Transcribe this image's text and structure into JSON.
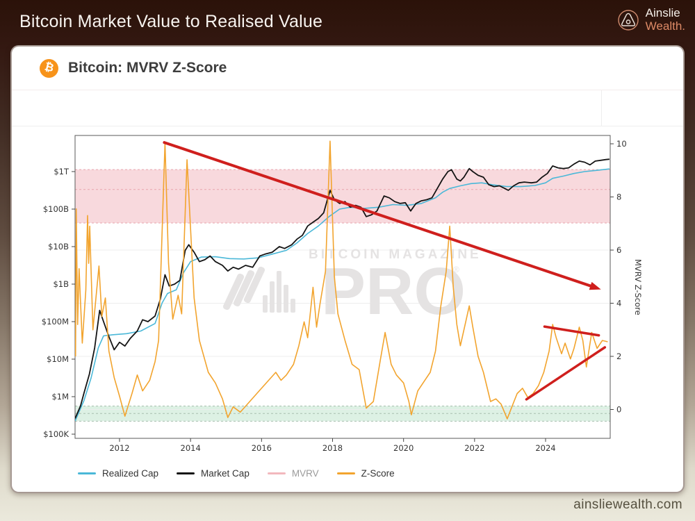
{
  "topbar": {
    "title": "Bitcoin Market Value to Realised Value",
    "brand_name": "Ainslie",
    "brand_suffix": "Wealth."
  },
  "card": {
    "title": "Bitcoin: MVRV Z-Score",
    "bitcoin_symbol": "₿"
  },
  "watermark": {
    "line1": "BITCOIN MAGAZINE",
    "line2": "PRO",
    "reg": "®",
    "color": "#e5e3e3"
  },
  "footer": {
    "website": "ainsliewealth.com"
  },
  "chart_data": {
    "type": "line",
    "title": "Bitcoin: MVRV Z-Score",
    "x_axis": {
      "range": [
        2010.75,
        2025.82
      ],
      "ticks": [
        2012,
        2014,
        2016,
        2018,
        2020,
        2022,
        2024
      ]
    },
    "left_axis": {
      "scale": "log",
      "unit": "USD",
      "tick_labels": [
        "$1T",
        "$100B",
        "$10B",
        "$1B",
        "$100M",
        "$10M",
        "$1M",
        "$100K"
      ],
      "tick_log10_values": [
        12,
        11,
        10,
        9,
        8,
        7,
        6,
        5
      ]
    },
    "right_axis": {
      "label": "MVRV Z-Score",
      "ticks": [
        10,
        8,
        6,
        4,
        2,
        0
      ],
      "range": [
        -1.15,
        10.4
      ]
    },
    "grid_z_values": [
      0,
      2,
      4,
      6
    ],
    "bands": [
      {
        "name": "overvalued-band",
        "axis": "z",
        "from": 7.02,
        "to": 9.03,
        "mid_line": 8.28,
        "fill": "#f8d9dd",
        "line_color": "#e7a3ad"
      },
      {
        "name": "undervalued-band",
        "axis": "z",
        "from": -0.44,
        "to": 0.13,
        "mid_line": -0.15,
        "fill": "#ddf1e4",
        "line_color": "#a8bfae"
      }
    ],
    "series": [
      {
        "name": "Realized Cap",
        "axis": "left",
        "color": "#4ab8d8",
        "width": 1.6,
        "value_format": "log10_usd",
        "points": [
          [
            2010.75,
            5.35
          ],
          [
            2011.0,
            5.9
          ],
          [
            2011.2,
            6.5
          ],
          [
            2011.4,
            7.3
          ],
          [
            2011.55,
            7.62
          ],
          [
            2011.8,
            7.65
          ],
          [
            2012.2,
            7.68
          ],
          [
            2012.6,
            7.75
          ],
          [
            2013.0,
            7.95
          ],
          [
            2013.2,
            8.5
          ],
          [
            2013.35,
            8.75
          ],
          [
            2013.6,
            8.85
          ],
          [
            2013.8,
            9.3
          ],
          [
            2014.0,
            9.6
          ],
          [
            2014.3,
            9.72
          ],
          [
            2014.7,
            9.73
          ],
          [
            2015.1,
            9.68
          ],
          [
            2015.5,
            9.67
          ],
          [
            2015.9,
            9.7
          ],
          [
            2016.3,
            9.8
          ],
          [
            2016.7,
            9.9
          ],
          [
            2017.0,
            10.1
          ],
          [
            2017.3,
            10.35
          ],
          [
            2017.6,
            10.55
          ],
          [
            2017.9,
            10.8
          ],
          [
            2018.2,
            11.0
          ],
          [
            2018.5,
            11.05
          ],
          [
            2018.9,
            11.02
          ],
          [
            2019.3,
            11.05
          ],
          [
            2019.7,
            11.12
          ],
          [
            2020.1,
            11.1
          ],
          [
            2020.5,
            11.15
          ],
          [
            2020.9,
            11.3
          ],
          [
            2021.1,
            11.45
          ],
          [
            2021.3,
            11.55
          ],
          [
            2021.6,
            11.62
          ],
          [
            2021.9,
            11.68
          ],
          [
            2022.2,
            11.7
          ],
          [
            2022.5,
            11.65
          ],
          [
            2022.9,
            11.6
          ],
          [
            2023.3,
            11.6
          ],
          [
            2023.7,
            11.63
          ],
          [
            2024.0,
            11.7
          ],
          [
            2024.2,
            11.82
          ],
          [
            2024.5,
            11.88
          ],
          [
            2024.8,
            11.95
          ],
          [
            2025.1,
            12.0
          ],
          [
            2025.4,
            12.03
          ],
          [
            2025.8,
            12.07
          ]
        ]
      },
      {
        "name": "Market Cap",
        "axis": "left",
        "color": "#141414",
        "width": 1.8,
        "value_format": "log10_usd",
        "points": [
          [
            2010.75,
            5.42
          ],
          [
            2010.9,
            5.75
          ],
          [
            2011.0,
            6.1
          ],
          [
            2011.15,
            6.6
          ],
          [
            2011.3,
            7.3
          ],
          [
            2011.44,
            8.3
          ],
          [
            2011.55,
            8.0
          ],
          [
            2011.7,
            7.6
          ],
          [
            2011.85,
            7.25
          ],
          [
            2012.0,
            7.45
          ],
          [
            2012.15,
            7.35
          ],
          [
            2012.3,
            7.55
          ],
          [
            2012.5,
            7.75
          ],
          [
            2012.65,
            8.05
          ],
          [
            2012.8,
            8.0
          ],
          [
            2013.0,
            8.15
          ],
          [
            2013.15,
            8.6
          ],
          [
            2013.28,
            9.25
          ],
          [
            2013.4,
            8.95
          ],
          [
            2013.55,
            9.0
          ],
          [
            2013.7,
            9.1
          ],
          [
            2013.85,
            9.9
          ],
          [
            2013.95,
            10.05
          ],
          [
            2014.1,
            9.85
          ],
          [
            2014.25,
            9.6
          ],
          [
            2014.4,
            9.65
          ],
          [
            2014.55,
            9.75
          ],
          [
            2014.7,
            9.6
          ],
          [
            2014.9,
            9.5
          ],
          [
            2015.05,
            9.35
          ],
          [
            2015.2,
            9.45
          ],
          [
            2015.35,
            9.4
          ],
          [
            2015.55,
            9.5
          ],
          [
            2015.75,
            9.45
          ],
          [
            2015.95,
            9.75
          ],
          [
            2016.1,
            9.8
          ],
          [
            2016.3,
            9.85
          ],
          [
            2016.5,
            10.0
          ],
          [
            2016.65,
            9.95
          ],
          [
            2016.85,
            10.05
          ],
          [
            2017.0,
            10.2
          ],
          [
            2017.15,
            10.3
          ],
          [
            2017.3,
            10.55
          ],
          [
            2017.45,
            10.65
          ],
          [
            2017.6,
            10.75
          ],
          [
            2017.75,
            10.9
          ],
          [
            2017.93,
            11.5
          ],
          [
            2018.05,
            11.25
          ],
          [
            2018.2,
            11.15
          ],
          [
            2018.35,
            11.2
          ],
          [
            2018.5,
            11.05
          ],
          [
            2018.65,
            11.1
          ],
          [
            2018.8,
            11.05
          ],
          [
            2018.95,
            10.8
          ],
          [
            2019.1,
            10.85
          ],
          [
            2019.25,
            10.95
          ],
          [
            2019.45,
            11.35
          ],
          [
            2019.6,
            11.3
          ],
          [
            2019.75,
            11.2
          ],
          [
            2019.9,
            11.15
          ],
          [
            2020.05,
            11.17
          ],
          [
            2020.2,
            10.95
          ],
          [
            2020.35,
            11.15
          ],
          [
            2020.5,
            11.22
          ],
          [
            2020.65,
            11.25
          ],
          [
            2020.8,
            11.3
          ],
          [
            2020.95,
            11.55
          ],
          [
            2021.1,
            11.8
          ],
          [
            2021.25,
            12.0
          ],
          [
            2021.35,
            12.05
          ],
          [
            2021.5,
            11.8
          ],
          [
            2021.6,
            11.75
          ],
          [
            2021.7,
            11.85
          ],
          [
            2021.85,
            12.08
          ],
          [
            2021.95,
            12.0
          ],
          [
            2022.1,
            11.9
          ],
          [
            2022.25,
            11.85
          ],
          [
            2022.4,
            11.65
          ],
          [
            2022.55,
            11.6
          ],
          [
            2022.7,
            11.62
          ],
          [
            2022.85,
            11.55
          ],
          [
            2022.95,
            11.5
          ],
          [
            2023.1,
            11.62
          ],
          [
            2023.25,
            11.7
          ],
          [
            2023.4,
            11.72
          ],
          [
            2023.6,
            11.7
          ],
          [
            2023.75,
            11.72
          ],
          [
            2023.9,
            11.85
          ],
          [
            2024.05,
            11.95
          ],
          [
            2024.2,
            12.15
          ],
          [
            2024.35,
            12.1
          ],
          [
            2024.5,
            12.08
          ],
          [
            2024.65,
            12.1
          ],
          [
            2024.8,
            12.2
          ],
          [
            2024.95,
            12.28
          ],
          [
            2025.1,
            12.25
          ],
          [
            2025.25,
            12.18
          ],
          [
            2025.4,
            12.28
          ],
          [
            2025.55,
            12.3
          ],
          [
            2025.7,
            12.32
          ],
          [
            2025.8,
            12.33
          ]
        ]
      },
      {
        "name": "Z-Score",
        "axis": "z",
        "color": "#f2a42e",
        "width": 1.6,
        "value_format": "z_score",
        "points": [
          [
            2010.76,
            2.0
          ],
          [
            2010.78,
            7.55
          ],
          [
            2010.82,
            3.2
          ],
          [
            2010.86,
            5.3
          ],
          [
            2010.95,
            2.5
          ],
          [
            2011.05,
            4.5
          ],
          [
            2011.1,
            7.3
          ],
          [
            2011.13,
            5.5
          ],
          [
            2011.16,
            6.9
          ],
          [
            2011.25,
            3.0
          ],
          [
            2011.42,
            5.4
          ],
          [
            2011.5,
            3.5
          ],
          [
            2011.6,
            4.2
          ],
          [
            2011.7,
            2.2
          ],
          [
            2011.85,
            1.2
          ],
          [
            2012.0,
            0.5
          ],
          [
            2012.15,
            -0.25
          ],
          [
            2012.35,
            0.6
          ],
          [
            2012.5,
            1.3
          ],
          [
            2012.65,
            0.7
          ],
          [
            2012.85,
            1.1
          ],
          [
            2013.0,
            1.8
          ],
          [
            2013.1,
            2.6
          ],
          [
            2013.28,
            10.05
          ],
          [
            2013.38,
            5.5
          ],
          [
            2013.5,
            3.4
          ],
          [
            2013.65,
            4.3
          ],
          [
            2013.75,
            3.6
          ],
          [
            2013.9,
            9.4
          ],
          [
            2014.1,
            4.2
          ],
          [
            2014.25,
            2.6
          ],
          [
            2014.5,
            1.4
          ],
          [
            2014.7,
            1.0
          ],
          [
            2014.9,
            0.4
          ],
          [
            2015.05,
            -0.3
          ],
          [
            2015.2,
            0.1
          ],
          [
            2015.4,
            -0.1
          ],
          [
            2015.6,
            0.2
          ],
          [
            2015.8,
            0.5
          ],
          [
            2016.0,
            0.8
          ],
          [
            2016.2,
            1.1
          ],
          [
            2016.4,
            1.4
          ],
          [
            2016.55,
            1.1
          ],
          [
            2016.7,
            1.3
          ],
          [
            2016.9,
            1.7
          ],
          [
            2017.05,
            2.4
          ],
          [
            2017.2,
            3.3
          ],
          [
            2017.3,
            2.7
          ],
          [
            2017.45,
            4.6
          ],
          [
            2017.55,
            3.1
          ],
          [
            2017.65,
            4.0
          ],
          [
            2017.8,
            5.2
          ],
          [
            2017.93,
            10.1
          ],
          [
            2018.05,
            5.0
          ],
          [
            2018.15,
            3.6
          ],
          [
            2018.35,
            2.6
          ],
          [
            2018.55,
            1.7
          ],
          [
            2018.75,
            1.5
          ],
          [
            2018.95,
            0.05
          ],
          [
            2019.15,
            0.3
          ],
          [
            2019.35,
            1.9
          ],
          [
            2019.48,
            2.9
          ],
          [
            2019.65,
            1.7
          ],
          [
            2019.8,
            1.3
          ],
          [
            2020.0,
            1.0
          ],
          [
            2020.15,
            0.3
          ],
          [
            2020.22,
            -0.2
          ],
          [
            2020.4,
            0.7
          ],
          [
            2020.6,
            1.1
          ],
          [
            2020.75,
            1.4
          ],
          [
            2020.9,
            2.2
          ],
          [
            2021.05,
            3.9
          ],
          [
            2021.2,
            5.2
          ],
          [
            2021.3,
            6.9
          ],
          [
            2021.4,
            4.6
          ],
          [
            2021.5,
            3.2
          ],
          [
            2021.6,
            2.4
          ],
          [
            2021.75,
            3.3
          ],
          [
            2021.85,
            3.9
          ],
          [
            2021.95,
            3.1
          ],
          [
            2022.1,
            2.0
          ],
          [
            2022.25,
            1.4
          ],
          [
            2022.45,
            0.3
          ],
          [
            2022.6,
            0.4
          ],
          [
            2022.75,
            0.2
          ],
          [
            2022.92,
            -0.35
          ],
          [
            2023.05,
            0.1
          ],
          [
            2023.2,
            0.6
          ],
          [
            2023.35,
            0.8
          ],
          [
            2023.5,
            0.45
          ],
          [
            2023.65,
            0.6
          ],
          [
            2023.8,
            0.9
          ],
          [
            2023.95,
            1.4
          ],
          [
            2024.1,
            2.2
          ],
          [
            2024.2,
            3.2
          ],
          [
            2024.3,
            2.7
          ],
          [
            2024.45,
            2.1
          ],
          [
            2024.55,
            2.5
          ],
          [
            2024.7,
            1.9
          ],
          [
            2024.8,
            2.3
          ],
          [
            2024.95,
            3.1
          ],
          [
            2025.05,
            2.6
          ],
          [
            2025.15,
            1.6
          ],
          [
            2025.3,
            2.9
          ],
          [
            2025.45,
            2.3
          ],
          [
            2025.6,
            2.6
          ],
          [
            2025.75,
            2.55
          ]
        ]
      }
    ],
    "annotations": [
      {
        "name": "downtrend-arrow",
        "type": "arrow",
        "color": "#cf1f1d",
        "width": 4,
        "from": [
          2013.26,
          10.05
        ],
        "to": [
          2025.56,
          4.52
        ]
      },
      {
        "name": "wedge-top-line",
        "type": "line",
        "color": "#cf1f1d",
        "width": 3.5,
        "from": [
          2023.97,
          3.12
        ],
        "to": [
          2025.5,
          2.79
        ]
      },
      {
        "name": "wedge-bottom-line",
        "type": "line",
        "color": "#cf1f1d",
        "width": 3.5,
        "from": [
          2023.46,
          0.38
        ],
        "to": [
          2025.67,
          2.34
        ]
      }
    ],
    "legend": [
      {
        "label": "Realized Cap",
        "color": "#4ab8d8",
        "muted": false
      },
      {
        "label": "Market Cap",
        "color": "#141414",
        "muted": false
      },
      {
        "label": "MVRV",
        "color": "#f2b8bd",
        "muted": true
      },
      {
        "label": "Z-Score",
        "color": "#f2a42e",
        "muted": false
      }
    ]
  }
}
